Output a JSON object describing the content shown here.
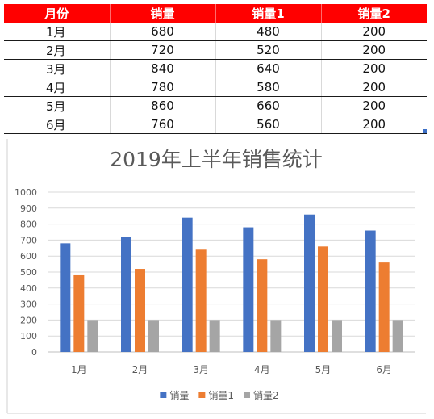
{
  "table": {
    "headers": [
      "月份",
      "销量",
      "销量1",
      "销量2"
    ],
    "rows": [
      [
        "1月",
        "680",
        "480",
        "200"
      ],
      [
        "2月",
        "720",
        "520",
        "200"
      ],
      [
        "3月",
        "840",
        "640",
        "200"
      ],
      [
        "4月",
        "780",
        "580",
        "200"
      ],
      [
        "5月",
        "860",
        "660",
        "200"
      ],
      [
        "6月",
        "760",
        "560",
        "200"
      ]
    ]
  },
  "chart_data": {
    "type": "bar",
    "title": "2019年上半年销售统计",
    "categories": [
      "1月",
      "2月",
      "3月",
      "4月",
      "5月",
      "6月"
    ],
    "series": [
      {
        "name": "销量",
        "values": [
          680,
          720,
          840,
          780,
          860,
          760
        ],
        "color": "#4472c4"
      },
      {
        "name": "销量1",
        "values": [
          480,
          520,
          640,
          580,
          660,
          560
        ],
        "color": "#ed7d31"
      },
      {
        "name": "销量2",
        "values": [
          200,
          200,
          200,
          200,
          200,
          200
        ],
        "color": "#a5a5a5"
      }
    ],
    "ylim": [
      0,
      1000
    ],
    "yticks": [
      0,
      100,
      200,
      300,
      400,
      500,
      600,
      700,
      800,
      900,
      1000
    ],
    "grid": true,
    "legend": "bottom"
  }
}
